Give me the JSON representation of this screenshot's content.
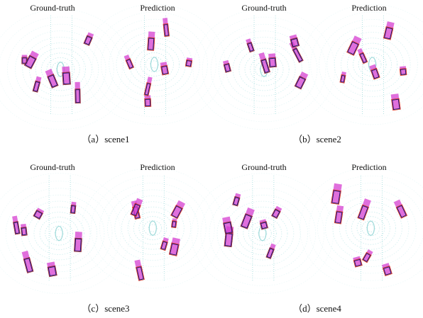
{
  "panels": [
    {
      "caption": "（a）scene1",
      "views": [
        "Ground-truth",
        "Prediction"
      ]
    },
    {
      "caption": "（b）scene2",
      "views": [
        "Ground-truth",
        "Prediction"
      ]
    },
    {
      "caption": "（c）scene3",
      "views": [
        "Ground-truth",
        "Prediction"
      ]
    },
    {
      "caption": "（d）scene4",
      "views": [
        "Ground-truth",
        "Prediction"
      ]
    }
  ]
}
